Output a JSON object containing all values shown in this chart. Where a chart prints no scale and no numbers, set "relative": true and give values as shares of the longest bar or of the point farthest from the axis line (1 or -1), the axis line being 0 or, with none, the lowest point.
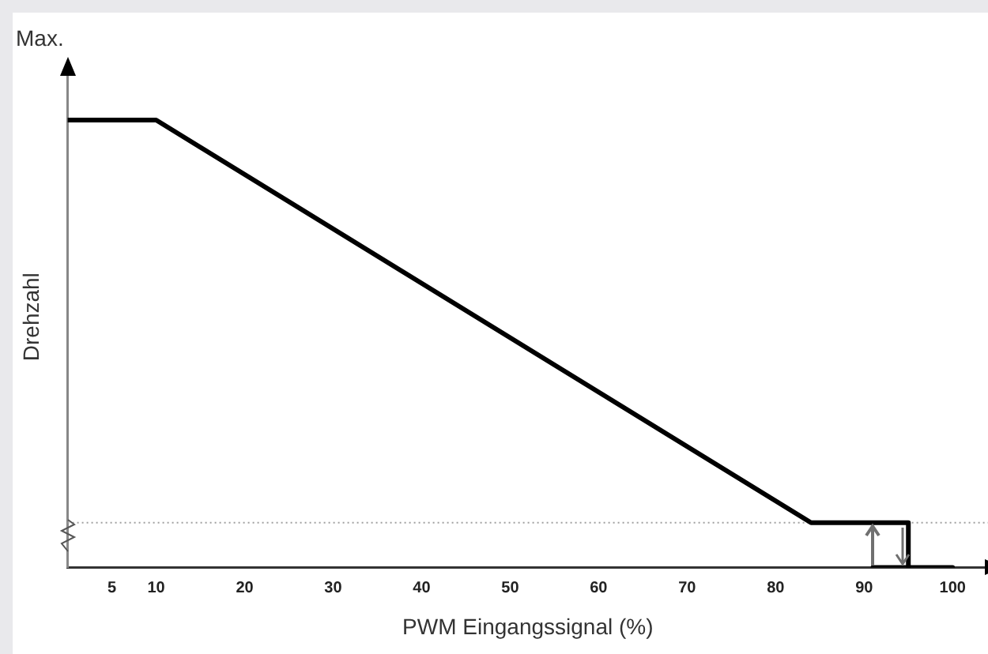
{
  "chart_data": {
    "type": "line",
    "relative": true,
    "xlabel": "PWM Eingangssignal (%)",
    "ylabel": "Drehzahl",
    "annotations": [
      "Max."
    ],
    "xlim": [
      0,
      104
    ],
    "xticks": [
      5,
      10,
      20,
      30,
      40,
      50,
      60,
      70,
      80,
      90,
      100
    ],
    "series": [
      {
        "color": "#000000",
        "x": [
          0,
          10,
          84,
          95,
          95,
          100
        ],
        "values": [
          1,
          1,
          0.1,
          0.1,
          0,
          0
        ]
      },
      {
        "color": "#000000",
        "x": [
          91,
          95
        ],
        "values": [
          0,
          0
        ]
      }
    ],
    "ref_lines": [
      {
        "axis": "y",
        "value": 0.1,
        "color": "#a0a0a0",
        "line_style": "dotted"
      }
    ],
    "grid": false,
    "legend": false,
    "marker": "none",
    "line_style": "solid"
  }
}
